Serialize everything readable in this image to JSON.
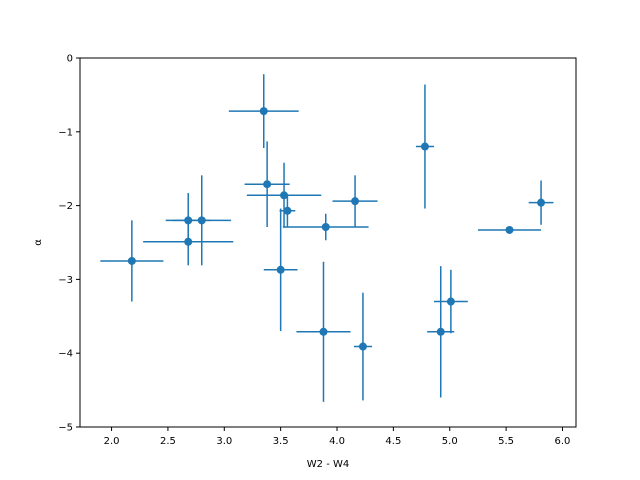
{
  "chart_data": {
    "type": "scatter",
    "title": "",
    "xlabel": "W2 - W4",
    "ylabel": "α",
    "xlim": [
      1.72,
      6.12
    ],
    "ylim": [
      -5,
      0
    ],
    "xticks": [
      "2.0",
      "2.5",
      "3.0",
      "3.5",
      "4.0",
      "4.5",
      "5.0",
      "5.5",
      "6.0"
    ],
    "xtick_values": [
      2.0,
      2.5,
      3.0,
      3.5,
      4.0,
      4.5,
      5.0,
      5.5,
      6.0
    ],
    "yticks": [
      "0",
      "−1",
      "−2",
      "−3",
      "−4",
      "−5"
    ],
    "ytick_values": [
      0,
      -1,
      -2,
      -3,
      -4,
      -5
    ],
    "grid": false,
    "color": "#1f77b4",
    "points": [
      {
        "x": 2.18,
        "y": -2.75,
        "xerr": 0.28,
        "yerr": 0.55
      },
      {
        "x": 2.68,
        "y": -2.2,
        "xerr": 0.2,
        "yerr": 0.37
      },
      {
        "x": 2.68,
        "y": -2.49,
        "xerr": 0.4,
        "yerr": 0.32
      },
      {
        "x": 2.8,
        "y": -2.2,
        "xerr": 0.26,
        "yerr": 0.61
      },
      {
        "x": 3.35,
        "y": -0.72,
        "xerr": 0.31,
        "yerr": 0.5
      },
      {
        "x": 3.38,
        "y": -1.71,
        "xerr": 0.2,
        "yerr": 0.58
      },
      {
        "x": 3.5,
        "y": -2.87,
        "xerr": 0.15,
        "yerr": 0.83
      },
      {
        "x": 3.53,
        "y": -1.86,
        "xerr": 0.33,
        "yerr": 0.44
      },
      {
        "x": 3.56,
        "y": -2.07,
        "xerr": 0.07,
        "yerr": 0.22
      },
      {
        "x": 3.88,
        "y": -3.71,
        "xerr": 0.24,
        "yerr": 0.95
      },
      {
        "x": 3.9,
        "y": -2.29,
        "xerr": 0.38,
        "yerr": 0.18
      },
      {
        "x": 4.16,
        "y": -1.94,
        "xerr": 0.2,
        "yerr": 0.35
      },
      {
        "x": 4.23,
        "y": -3.91,
        "xerr": 0.08,
        "yerr": 0.73
      },
      {
        "x": 4.78,
        "y": -1.2,
        "xerr": 0.08,
        "yerr": 0.84
      },
      {
        "x": 4.92,
        "y": -3.71,
        "xerr": 0.12,
        "yerr": 0.89
      },
      {
        "x": 5.01,
        "y": -3.3,
        "xerr": 0.15,
        "yerr": 0.43
      },
      {
        "x": 5.53,
        "y": -2.33,
        "xerr": 0.28,
        "yerr": 0.05
      },
      {
        "x": 5.81,
        "y": -1.96,
        "xerr": 0.11,
        "yerr": 0.3
      }
    ]
  }
}
